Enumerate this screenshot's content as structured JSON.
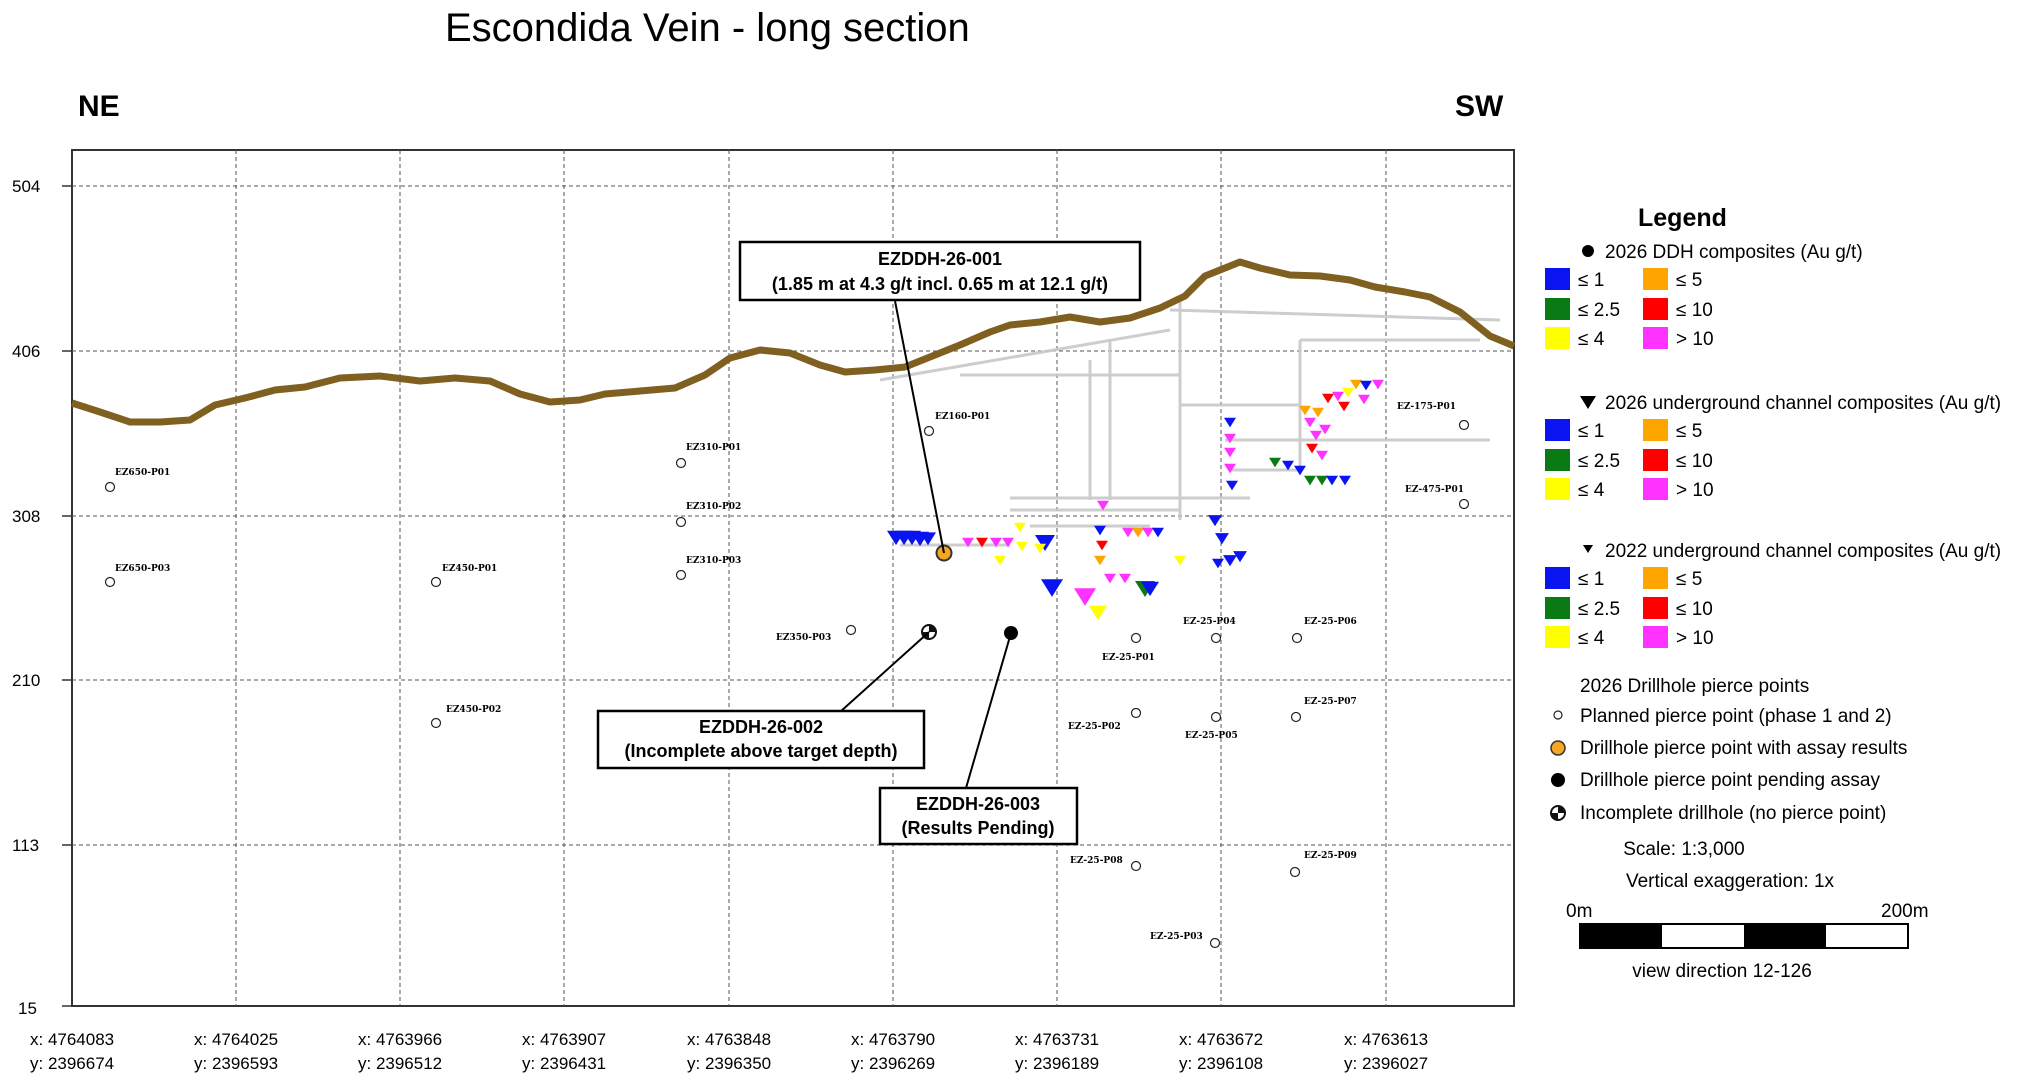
{
  "title": "Escondida Vein - long section",
  "direction_left": "NE",
  "direction_right": "SW",
  "chart_data": {
    "type": "long-section",
    "y_ticks": [
      "504",
      "406",
      "308",
      "210",
      "113",
      "15"
    ],
    "x_ticks": [
      {
        "x": "x: 4764083",
        "y": "y: 2396674"
      },
      {
        "x": "x: 4764025",
        "y": "y: 2396593"
      },
      {
        "x": "x: 4763966",
        "y": "y: 2396512"
      },
      {
        "x": "x: 4763907",
        "y": "y: 2396431"
      },
      {
        "x": "x: 4763848",
        "y": "y: 2396350"
      },
      {
        "x": "x: 4763790",
        "y": "y: 2396269"
      },
      {
        "x": "x: 4763731",
        "y": "y: 2396189"
      },
      {
        "x": "x: 4763672",
        "y": "y: 2396108"
      },
      {
        "x": "x: 4763613",
        "y": "y: 2396027"
      }
    ],
    "pierce_point_labels": [
      "EZ650-P01",
      "EZ650-P03",
      "EZ450-P01",
      "EZ450-P02",
      "EZ310-P01",
      "EZ310-P02",
      "EZ310-P03",
      "EZ350-P03",
      "EZ160-P01",
      "EZ-25-P01",
      "EZ-25-P02",
      "EZ-25-P04",
      "EZ-25-P05",
      "EZ-25-P06",
      "EZ-25-P07",
      "EZ-25-P08",
      "EZ-25-P09",
      "EZ-25-P03",
      "EZ-175-P01",
      "EZ-475-P01"
    ]
  },
  "callouts": {
    "c1_line1": "EZDDH-26-001",
    "c1_line2": "(1.85 m at 4.3 g/t incl. 0.65 m at 12.1 g/t)",
    "c2_line1": "EZDDH-26-002",
    "c2_line2": "(Incomplete above target depth)",
    "c3_line1": "EZDDH-26-003",
    "c3_line2": "(Results Pending)"
  },
  "legend": {
    "title": "Legend",
    "group1_title": "2026 DDH composites (Au g/t)",
    "group2_title": "2026 underground channel composites (Au g/t)",
    "group3_title": "2022 underground channel composites (Au g/t)",
    "grade_classes": [
      {
        "label": "≤ 1",
        "color": "#0a14f0"
      },
      {
        "label": "≤ 2.5",
        "color": "#0a7a14"
      },
      {
        "label": "≤ 4",
        "color": "#ffff00"
      },
      {
        "label": "≤ 5",
        "color": "#ffa500"
      },
      {
        "label": "≤ 10",
        "color": "#ff0000"
      },
      {
        "label": "> 10",
        "color": "#ff33ff"
      }
    ],
    "pierce_title": "2026 Drillhole pierce points",
    "planned": "Planned pierce point (phase 1 and 2)",
    "assay": "Drillhole pierce point with assay results",
    "pending": "Drillhole pierce point pending assay",
    "incomplete": "Incomplete drillhole (no pierce point)",
    "scale": "Scale: 1:3,000",
    "vertical_exaggeration": "Vertical exaggeration: 1x",
    "scalebar_start": "0m",
    "scalebar_end": "200m",
    "view_direction": "view direction 12-126"
  },
  "colors": {
    "topography": "#806020",
    "workings": "#c8c8c8",
    "assay_point": "#f5a623"
  }
}
